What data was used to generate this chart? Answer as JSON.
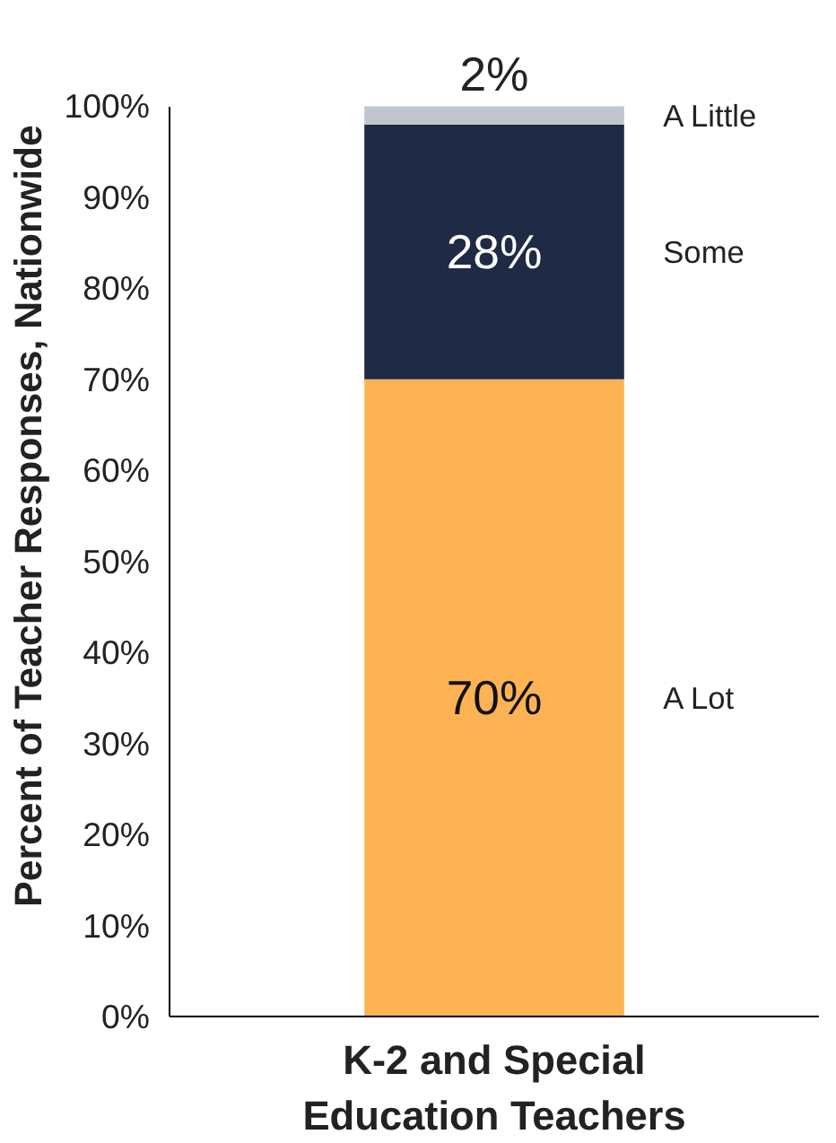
{
  "chart_data": {
    "type": "bar",
    "stacked": true,
    "ylabel": "Percent of Teacher Responses, Nationwide",
    "categories": [
      "K-2 and Special\nEducation Teachers"
    ],
    "series": [
      {
        "name": "A Lot",
        "color": "#fdb354",
        "values": [
          70
        ],
        "value_labels": [
          "70%"
        ]
      },
      {
        "name": "Some",
        "color": "#1f2a44",
        "values": [
          28
        ],
        "value_labels": [
          "28%"
        ]
      },
      {
        "name": "A Little",
        "color": "#c0c6cc",
        "values": [
          2
        ],
        "value_labels": [
          "2%"
        ]
      }
    ],
    "ylim": [
      0,
      100
    ],
    "yticks": [
      {
        "value": 0,
        "label": "0%"
      },
      {
        "value": 10,
        "label": "10%"
      },
      {
        "value": 20,
        "label": "20%"
      },
      {
        "value": 30,
        "label": "30%"
      },
      {
        "value": 40,
        "label": "40%"
      },
      {
        "value": 50,
        "label": "50%"
      },
      {
        "value": 60,
        "label": "60%"
      },
      {
        "value": 70,
        "label": "70%"
      },
      {
        "value": 80,
        "label": "80%"
      },
      {
        "value": 90,
        "label": "90%"
      },
      {
        "value": 100,
        "label": "100%"
      }
    ],
    "grid": false,
    "legend": false
  }
}
